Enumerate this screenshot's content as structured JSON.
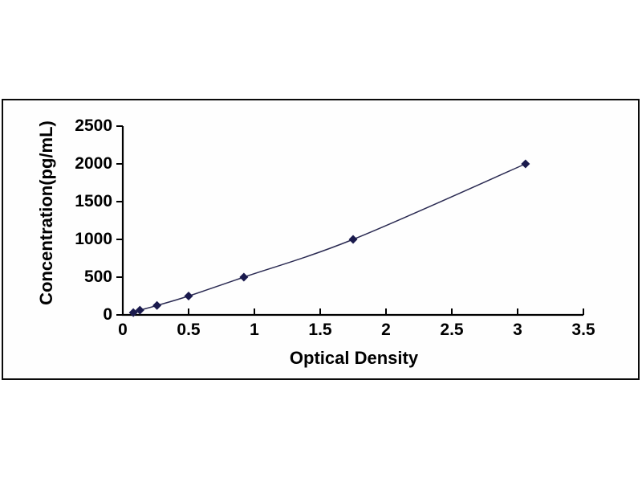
{
  "window": {
    "background_color": "#ffffff",
    "frame_border_color": "#0a0a0a"
  },
  "chart_data": {
    "type": "line",
    "title": "",
    "xlabel": "Optical Density",
    "ylabel": "Concentration(pg/mL)",
    "xlim": [
      0,
      3.5
    ],
    "ylim": [
      0,
      2500
    ],
    "x_tick_values": [
      0,
      0.5,
      1,
      1.5,
      2,
      2.5,
      3,
      3.5
    ],
    "x_tick_labels": [
      "0",
      "0.5",
      "1",
      "1.5",
      "2",
      "2.5",
      "3",
      "3.5"
    ],
    "y_tick_values": [
      0,
      500,
      1000,
      1500,
      2000,
      2500
    ],
    "y_tick_labels": [
      "0",
      "500",
      "1000",
      "1500",
      "2000",
      "2500"
    ],
    "grid": false,
    "legend_position": "none",
    "marker_shape": "diamond",
    "series": [
      {
        "name": "standard-curve",
        "x": [
          0.08,
          0.13,
          0.26,
          0.5,
          0.92,
          1.75,
          3.06
        ],
        "y": [
          31.25,
          62.5,
          125,
          250,
          500,
          1000,
          2000
        ]
      }
    ],
    "colors": {
      "line": "#2a2a52",
      "marker": "#1a1a4d",
      "axis": "#000000",
      "text": "#000000"
    }
  }
}
